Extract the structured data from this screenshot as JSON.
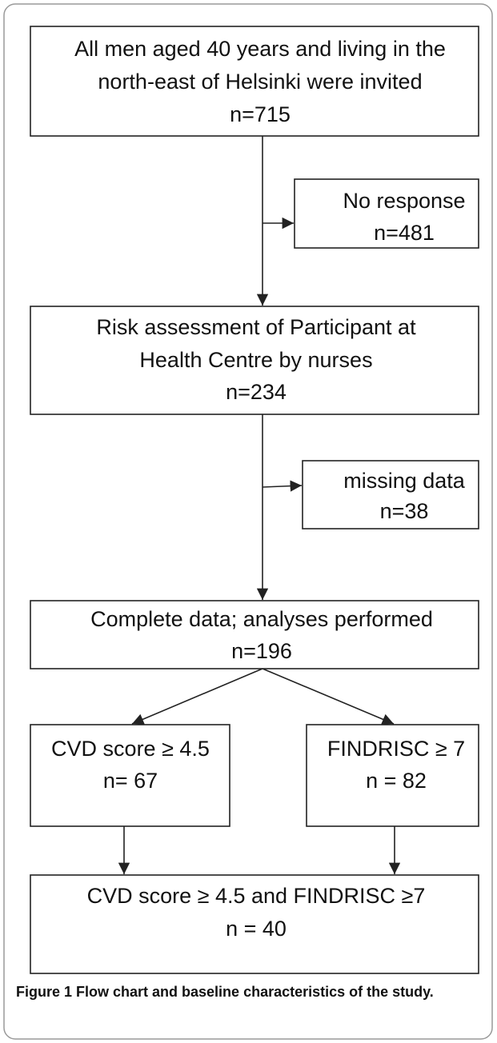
{
  "nodes": [
    {
      "lines": [
        "All men aged 40 years and living in the",
        "north-east of Helsinki were invited",
        "n=715"
      ]
    },
    {
      "lines": [
        "No response",
        "n=481"
      ]
    },
    {
      "lines": [
        "Risk assessment of Participant at",
        "Health Centre by nurses",
        "n=234"
      ]
    },
    {
      "lines": [
        "missing data",
        "n=38"
      ]
    },
    {
      "lines": [
        "Complete data; analyses performed",
        "n=196"
      ]
    },
    {
      "lines": [
        "CVD score ≥ 4.5",
        "n= 67"
      ]
    },
    {
      "lines": [
        "FINDRISC ≥ 7",
        "n = 82"
      ]
    },
    {
      "lines": [
        "CVD score ≥ 4.5 and FINDRISC ≥7",
        "n = 40"
      ]
    }
  ],
  "caption": "Figure 1 Flow chart and baseline characteristics of the study."
}
